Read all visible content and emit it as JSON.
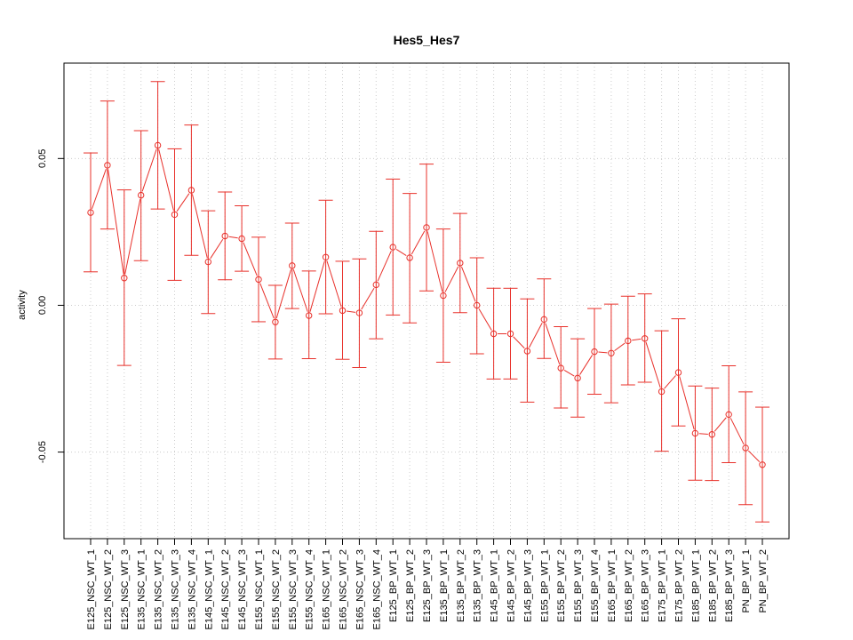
{
  "chart_data": {
    "type": "line",
    "title": "Hes5_Hes7",
    "xlabel": "",
    "ylabel": "activity",
    "ylim": [
      -0.0795,
      0.0825
    ],
    "y_ticks": [
      -0.05,
      0.0,
      0.05
    ],
    "y_tick_labels": [
      "-0.05",
      "0.00",
      "0.05"
    ],
    "grid": true,
    "legend": "none",
    "series_color": "#e8302a",
    "grid_color": "#cccccc",
    "categories": [
      "E125_NSC_WT_1",
      "E125_NSC_WT_2",
      "E125_NSC_WT_3",
      "E135_NSC_WT_1",
      "E135_NSC_WT_2",
      "E135_NSC_WT_3",
      "E135_NSC_WT_4",
      "E145_NSC_WT_1",
      "E145_NSC_WT_2",
      "E145_NSC_WT_3",
      "E155_NSC_WT_1",
      "E155_NSC_WT_2",
      "E155_NSC_WT_3",
      "E155_NSC_WT_4",
      "E165_NSC_WT_1",
      "E165_NSC_WT_2",
      "E165_NSC_WT_3",
      "E165_NSC_WT_4",
      "E125_BP_WT_1",
      "E125_BP_WT_2",
      "E125_BP_WT_3",
      "E135_BP_WT_1",
      "E135_BP_WT_2",
      "E135_BP_WT_3",
      "E145_BP_WT_1",
      "E145_BP_WT_2",
      "E145_BP_WT_3",
      "E155_BP_WT_1",
      "E155_BP_WT_2",
      "E155_BP_WT_3",
      "E155_BP_WT_4",
      "E165_BP_WT_1",
      "E165_BP_WT_2",
      "E165_BP_WT_3",
      "E175_BP_WT_1",
      "E175_BP_WT_2",
      "E185_BP_WT_1",
      "E185_BP_WT_2",
      "E185_BP_WT_3",
      "PN_BP_WT_1",
      "PN_BP_WT_2"
    ],
    "values": [
      0.0316,
      0.0477,
      0.0093,
      0.0375,
      0.0545,
      0.0309,
      0.0392,
      0.0148,
      0.0236,
      0.0227,
      0.0088,
      -0.0057,
      0.0135,
      -0.0035,
      0.0164,
      -0.0018,
      -0.0026,
      0.007,
      0.0198,
      0.0162,
      0.0265,
      0.0033,
      0.0144,
      0.0,
      -0.0097,
      -0.0097,
      -0.0156,
      -0.0048,
      -0.0214,
      -0.0248,
      -0.0158,
      -0.0163,
      -0.0121,
      -0.0113,
      -0.0294,
      -0.0229,
      -0.0436,
      -0.044,
      -0.0372,
      -0.0486,
      -0.0543
    ],
    "error_upper": [
      0.0519,
      0.0696,
      0.0393,
      0.0595,
      0.0762,
      0.0533,
      0.0614,
      0.0322,
      0.0386,
      0.0339,
      0.0232,
      0.0068,
      0.028,
      0.0117,
      0.0358,
      0.015,
      0.0158,
      0.0252,
      0.043,
      0.0381,
      0.0481,
      0.026,
      0.0313,
      0.0162,
      0.0058,
      0.0058,
      0.0022,
      0.009,
      -0.0073,
      -0.0114,
      -0.0011,
      0.0004,
      0.0031,
      0.0039,
      -0.0087,
      -0.0046,
      -0.0275,
      -0.0282,
      -0.0206,
      -0.0295,
      -0.0347
    ],
    "error_lower": [
      0.0114,
      0.026,
      -0.0205,
      0.0152,
      0.0328,
      0.0085,
      0.017,
      -0.0028,
      0.0087,
      0.0116,
      -0.0056,
      -0.0183,
      -0.0011,
      -0.0182,
      -0.0029,
      -0.0184,
      -0.0212,
      -0.0114,
      -0.0033,
      -0.006,
      0.0049,
      -0.0194,
      -0.0025,
      -0.0165,
      -0.0251,
      -0.0251,
      -0.033,
      -0.0181,
      -0.035,
      -0.0381,
      -0.0303,
      -0.0332,
      -0.0271,
      -0.0262,
      -0.0497,
      -0.0411,
      -0.0596,
      -0.0597,
      -0.0536,
      -0.0679,
      -0.0738
    ]
  }
}
